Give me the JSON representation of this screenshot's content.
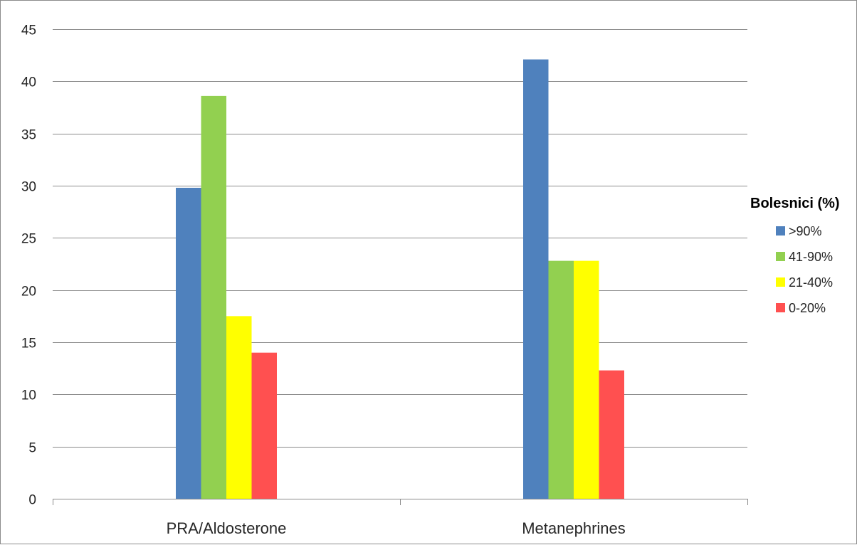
{
  "chart_data": {
    "type": "bar",
    "title": "",
    "xlabel": "",
    "ylabel": "",
    "categories": [
      "PRA/Aldosterone",
      "Metanephrines"
    ],
    "series": [
      {
        "name": ">90%",
        "values": [
          29.8,
          42.1
        ],
        "color": "#4F81BD"
      },
      {
        "name": "41-90%",
        "values": [
          38.6,
          22.8
        ],
        "color": "#92D050"
      },
      {
        "name": "21-40%",
        "values": [
          17.5,
          22.8
        ],
        "color": "#FFFF00"
      },
      {
        "name": "0-20%",
        "values": [
          14.0,
          12.3
        ],
        "color": "#FF5050"
      }
    ],
    "ylim": [
      0,
      45
    ],
    "yticks": [
      0,
      5,
      10,
      15,
      20,
      25,
      30,
      35,
      40,
      45
    ],
    "grid": true,
    "legend": {
      "title": "Bolesnici (%)",
      "placement": "right"
    }
  }
}
